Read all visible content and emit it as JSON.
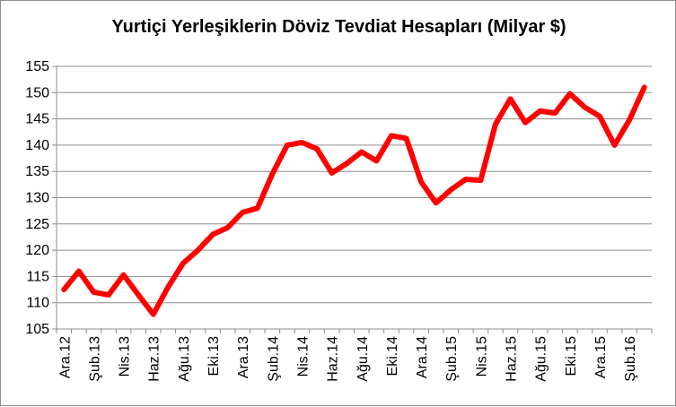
{
  "chart_data": {
    "type": "line",
    "title": "Yurtiçi Yerleşiklerin Döviz Tevdiat Hesapları (Milyar $)",
    "xlabel": "",
    "ylabel": "",
    "ylim": [
      105,
      155
    ],
    "yticks": [
      105,
      110,
      115,
      120,
      125,
      130,
      135,
      140,
      145,
      150,
      155
    ],
    "x_tick_labels": [
      "Ara.12",
      "Şub.13",
      "Nis.13",
      "Haz.13",
      "Ağu.13",
      "Eki.13",
      "Ara.13",
      "Şub.14",
      "Nis.14",
      "Haz.14",
      "Ağu.14",
      "Eki.14",
      "Ara.14",
      "Şub.15",
      "Nis.15",
      "Haz.15",
      "Ağu.15",
      "Eki.15",
      "Ara.15",
      "Şub.16"
    ],
    "grid": true,
    "line_color": "#ff0000",
    "series": [
      {
        "values": [
          112.5,
          116.0,
          112.0,
          111.5,
          115.3,
          111.5,
          107.8,
          113.0,
          117.5,
          120.0,
          123.0,
          124.3,
          127.2,
          128.0,
          134.5,
          140.0,
          140.5,
          139.3,
          134.7,
          136.5,
          138.7,
          137.0,
          141.8,
          141.3,
          133.0,
          129.0,
          131.5,
          133.5,
          133.3,
          144.0,
          148.8,
          144.3,
          146.5,
          146.1,
          149.8,
          147.2,
          145.5,
          140.0,
          144.8,
          151.0
        ]
      }
    ]
  }
}
